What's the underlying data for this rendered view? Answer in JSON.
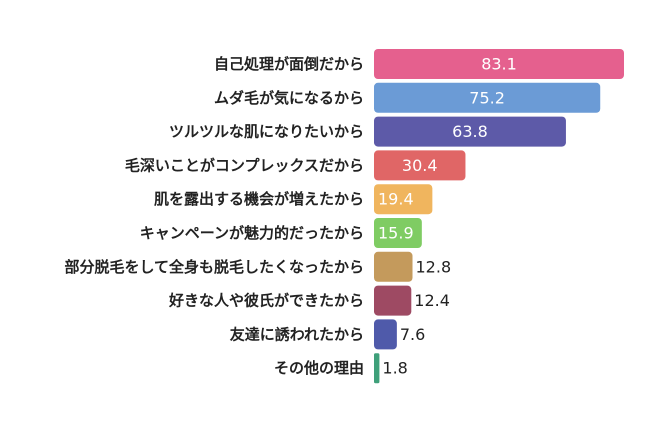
{
  "chart_data": {
    "type": "bar",
    "orientation": "horizontal",
    "title": "",
    "xlabel": "",
    "ylabel": "",
    "xlim": [
      0,
      83.1
    ],
    "grid": false,
    "legend": "none",
    "categories": [
      "自己処理が面倒だから",
      "ムダ毛が気になるから",
      "ツルツルな肌になりたいから",
      "毛深いことがコンプレックスだから",
      "肌を露出する機会が増えたから",
      "キャンペーンが魅力的だったから",
      "部分脱毛をして全身も脱毛したくなったから",
      "好きな人や彼氏ができたから",
      "友達に誘われたから",
      "その他の理由"
    ],
    "values": [
      83.1,
      75.2,
      63.8,
      30.4,
      19.4,
      15.9,
      12.8,
      12.4,
      7.6,
      1.8
    ],
    "value_labels": [
      "83.1",
      "75.2",
      "63.8",
      "30.4",
      "19.4",
      "15.9",
      "12.8",
      "12.4",
      "7.6",
      "1.8"
    ],
    "colors": [
      "#e5608e",
      "#6b9bd6",
      "#5d5aa8",
      "#e06666",
      "#f0b55e",
      "#7fcc63",
      "#c49a5c",
      "#9e4a63",
      "#4f5aaa",
      "#3fa07a"
    ],
    "label_inside": [
      true,
      true,
      true,
      true,
      true,
      true,
      false,
      false,
      false,
      false
    ]
  }
}
